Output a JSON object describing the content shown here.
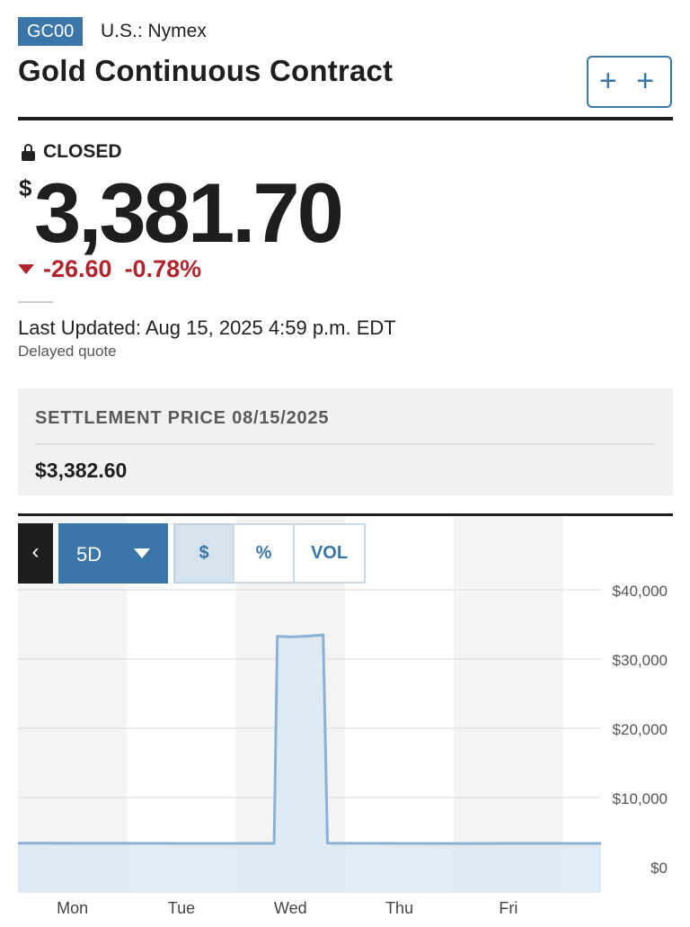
{
  "header": {
    "ticker": "GC00",
    "exchange": "U.S.: Nymex",
    "title": "Gold Continuous Contract",
    "watch_label": "+ +"
  },
  "quote": {
    "status": "CLOSED",
    "currency_symbol": "$",
    "price": "3,381.70",
    "change": "-26.60",
    "change_percent": "-0.78%",
    "change_color": "#b1252f",
    "last_updated": "Last Updated: Aug 15, 2025 4:59 p.m. EDT",
    "delayed_note": "Delayed quote"
  },
  "settlement": {
    "label": "SETTLEMENT PRICE 08/15/2025",
    "value": "$3,382.60"
  },
  "chart_controls": {
    "back_label": "‹",
    "range_label": "5D",
    "modes": [
      "$",
      "%",
      "VOL"
    ],
    "active_mode": "$"
  },
  "colors": {
    "accent": "#3a76a8",
    "line": "#8ab2d6",
    "fill": "#dce7f1"
  },
  "chart_data": {
    "type": "area",
    "categories": [
      "Mon",
      "Tue",
      "Wed",
      "Thu",
      "Fri"
    ],
    "y_ticks": [
      "$40,000",
      "$30,000",
      "$20,000",
      "$10,000",
      "$0"
    ],
    "ylim": [
      0,
      40000
    ],
    "grid": true,
    "x_days": [
      -0.5,
      4.85
    ],
    "series": [
      {
        "points": [
          [
            -0.5,
            3400
          ],
          [
            0,
            3390
          ],
          [
            0.5,
            3385
          ],
          [
            1,
            3375
          ],
          [
            1.5,
            3380
          ],
          [
            1.85,
            3380
          ],
          [
            1.88,
            33300
          ],
          [
            2.0,
            33200
          ],
          [
            2.15,
            33300
          ],
          [
            2.3,
            33500
          ],
          [
            2.34,
            3400
          ],
          [
            2.5,
            3385
          ],
          [
            3,
            3380
          ],
          [
            3.5,
            3370
          ],
          [
            4,
            3375
          ],
          [
            4.5,
            3378
          ],
          [
            4.85,
            3382
          ]
        ]
      }
    ]
  }
}
